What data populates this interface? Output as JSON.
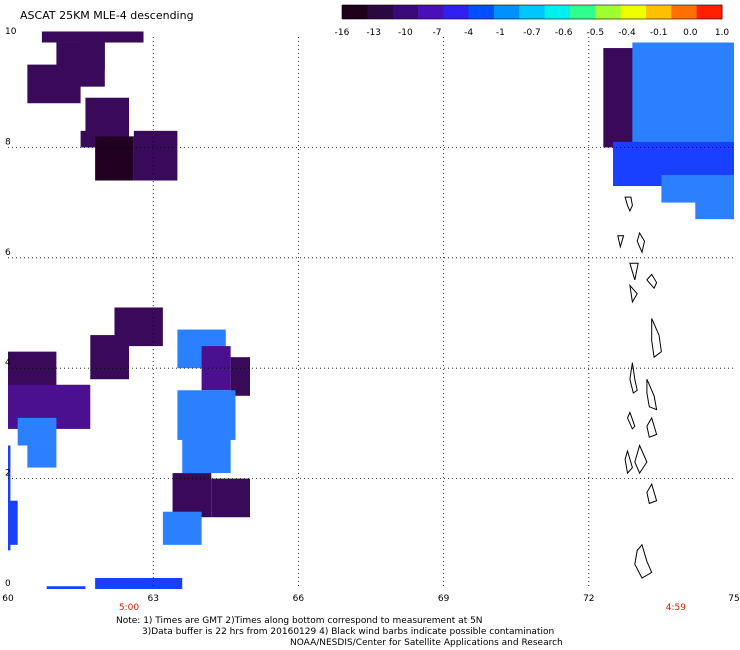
{
  "title": "ASCAT 25KM MLE-4 descending",
  "colorbar": {
    "tick_labels": [
      "-16",
      "-13",
      "-10",
      "-7",
      "-4",
      "-1",
      "-0.7",
      "-0.6",
      "-0.5",
      "-0.4",
      "-0.1",
      "0.0",
      "1.0"
    ],
    "colors": [
      "#1e0018",
      "#2c0840",
      "#3a0a78",
      "#4a10b8",
      "#3020f0",
      "#0050ff",
      "#0090ff",
      "#00c8ff",
      "#00f0f0",
      "#30ff90",
      "#a0ff30",
      "#f0ff00",
      "#ffc000",
      "#ff7000",
      "#ff2000"
    ]
  },
  "map": {
    "lon_labels": [
      "60",
      "63",
      "66",
      "69",
      "72",
      "75"
    ],
    "lat_labels": [
      "0",
      "2",
      "4",
      "6",
      "8",
      "10"
    ],
    "time_labels": [
      "5:00",
      "4:59"
    ],
    "grid": "dotted",
    "icons": [
      "maldives-coastline-icon"
    ],
    "value_colors": {
      "-16": "#210021",
      "-13": "#3a0a5a",
      "-10": "#4a1090",
      "-7": "#1a40ff",
      "-4": "#2a80ff"
    }
  },
  "notes": {
    "line1": "Note: 1) Times are GMT 2)Times along bottom correspond to measurement at 5N",
    "line2": "3)Data buffer is 22 hrs from 20160129 4) Black wind barbs indicate possible contamination",
    "line3": "NOAA/NESDIS/Center for Satellite Applications and Research"
  }
}
